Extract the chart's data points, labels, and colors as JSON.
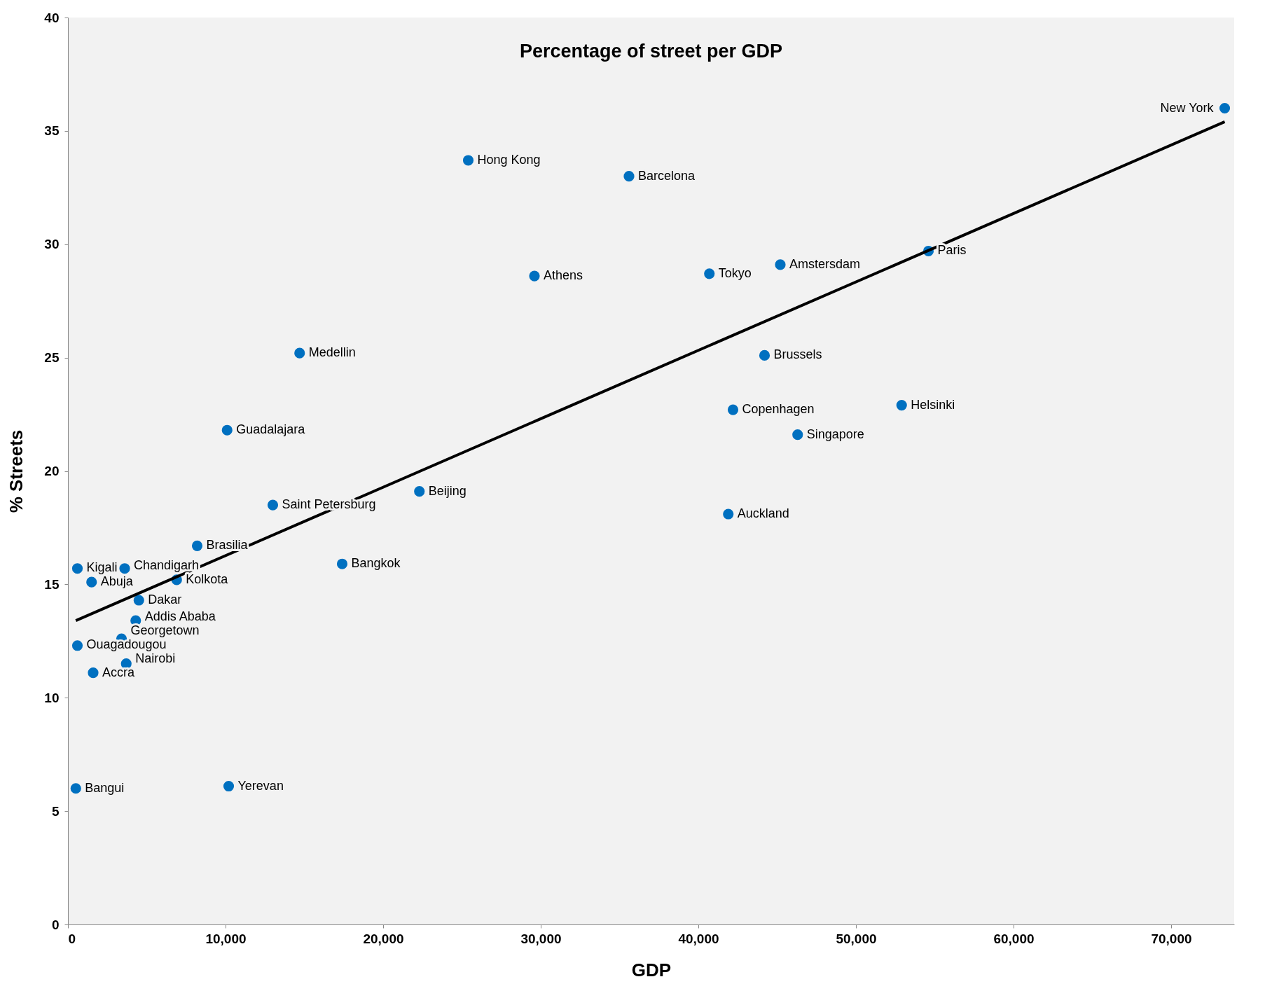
{
  "chart_data": {
    "type": "scatter",
    "title": "Percentage of street per GDP",
    "xlabel": "GDP",
    "ylabel": "% Streets",
    "xlim": [
      0,
      74000
    ],
    "ylim": [
      0,
      40
    ],
    "xticks": [
      0,
      {
        "value": 10000,
        "label": "10,000"
      },
      {
        "value": 20000,
        "label": "20,000"
      },
      {
        "value": 30000,
        "label": "30,000"
      },
      {
        "value": 40000,
        "label": "40,000"
      },
      {
        "value": 50000,
        "label": "50,000"
      },
      {
        "value": 60000,
        "label": "60,000"
      },
      {
        "value": 70000,
        "label": "70,000"
      }
    ],
    "yticks": [
      0,
      5,
      10,
      15,
      20,
      25,
      30,
      35,
      40
    ],
    "grid": false,
    "marker": "circle",
    "series": [
      {
        "color": "#0070c0",
        "x": [
          73400,
          25400,
          35600,
          29600,
          40700,
          45200,
          54600,
          14700,
          44200,
          42200,
          52900,
          46300,
          10100,
          13000,
          22300,
          41900,
          8200,
          17400,
          600,
          3600,
          1500,
          6900,
          4500,
          4300,
          3400,
          600,
          3700,
          1600,
          500,
          10200
        ],
        "values": [
          36.0,
          33.7,
          33.0,
          28.6,
          28.7,
          29.1,
          29.7,
          25.2,
          25.1,
          22.7,
          22.9,
          21.6,
          21.8,
          18.5,
          19.1,
          18.1,
          16.7,
          15.9,
          15.7,
          15.7,
          15.1,
          15.2,
          14.3,
          13.4,
          12.6,
          12.3,
          11.5,
          11.1,
          6.0,
          6.1
        ]
      },
      {
        "type": "line",
        "color": "#000000",
        "x": [
          500,
          73400
        ],
        "values": [
          13.4,
          35.4
        ],
        "marker": "none"
      }
    ],
    "annotations": [
      {
        "text": "New York",
        "x": 73400,
        "y": 36.0
      },
      {
        "text": "Hong Kong",
        "x": 25400,
        "y": 33.7
      },
      {
        "text": "Barcelona",
        "x": 35600,
        "y": 33.0
      },
      {
        "text": "Athens",
        "x": 29600,
        "y": 28.6
      },
      {
        "text": "Tokyo",
        "x": 40700,
        "y": 28.7
      },
      {
        "text": "Amstersdam",
        "x": 45200,
        "y": 29.1
      },
      {
        "text": "Paris",
        "x": 54600,
        "y": 29.7
      },
      {
        "text": "Medellin",
        "x": 14700,
        "y": 25.2
      },
      {
        "text": "Brussels",
        "x": 44200,
        "y": 25.1
      },
      {
        "text": "Copenhagen",
        "x": 42200,
        "y": 22.7
      },
      {
        "text": "Helsinki",
        "x": 52900,
        "y": 22.9
      },
      {
        "text": "Singapore",
        "x": 46300,
        "y": 21.6
      },
      {
        "text": "Guadalajara",
        "x": 10100,
        "y": 21.8
      },
      {
        "text": "Saint Petersburg",
        "x": 13000,
        "y": 18.5
      },
      {
        "text": "Beijing",
        "x": 22300,
        "y": 19.1
      },
      {
        "text": "Auckland",
        "x": 41900,
        "y": 18.1
      },
      {
        "text": "Brasilia",
        "x": 8200,
        "y": 16.7
      },
      {
        "text": "Bangkok",
        "x": 17400,
        "y": 15.9
      },
      {
        "text": "Kigali",
        "x": 600,
        "y": 15.7
      },
      {
        "text": "Chandigarh",
        "x": 3600,
        "y": 15.7
      },
      {
        "text": "Abuja",
        "x": 1500,
        "y": 15.1
      },
      {
        "text": "Kolkota",
        "x": 6900,
        "y": 15.2
      },
      {
        "text": "Dakar",
        "x": 4500,
        "y": 14.3
      },
      {
        "text": "Addis Ababa",
        "x": 4300,
        "y": 13.4
      },
      {
        "text": "Georgetown",
        "x": 3400,
        "y": 12.6
      },
      {
        "text": "Ouagadougou",
        "x": 600,
        "y": 12.3
      },
      {
        "text": "Nairobi",
        "x": 3700,
        "y": 11.5
      },
      {
        "text": "Accra",
        "x": 1600,
        "y": 11.1
      },
      {
        "text": "Bangui",
        "x": 500,
        "y": 6.0
      },
      {
        "text": "Yerevan",
        "x": 10200,
        "y": 6.1
      }
    ]
  }
}
